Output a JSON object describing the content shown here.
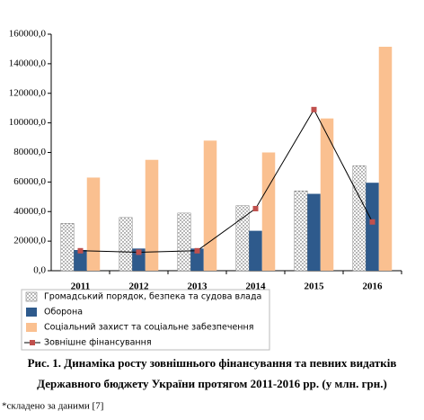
{
  "chart_data": {
    "type": "bar",
    "categories": [
      "2011",
      "2012",
      "2013",
      "2014",
      "2015",
      "2016"
    ],
    "series": [
      {
        "name": "Громадський порядок, безпека та судова влада",
        "color": "#ffffff",
        "pattern": "dots",
        "values": [
          32000,
          36000,
          39000,
          44000,
          54000,
          71000
        ]
      },
      {
        "name": "Оборона",
        "color": "#2e5a8c",
        "values": [
          14000,
          15000,
          15000,
          27000,
          52000,
          59500
        ]
      },
      {
        "name": "Соціальний захист та соціальне забезпечення",
        "color": "#fac090",
        "values": [
          63000,
          75000,
          88000,
          80000,
          103000,
          151500
        ]
      },
      {
        "name": "Зовнішне фінансування",
        "type": "line",
        "color": "#c0504d",
        "values": [
          13500,
          12500,
          13500,
          42000,
          109000,
          33000
        ]
      }
    ],
    "ylim": [
      0,
      160000
    ],
    "yticks": [
      {
        "value": 0,
        "label": "0,0"
      },
      {
        "value": 20000,
        "label": "20000,0"
      },
      {
        "value": 40000,
        "label": "40000,0"
      },
      {
        "value": 60000,
        "label": "60000,0"
      },
      {
        "value": 80000,
        "label": "80000,0"
      },
      {
        "value": 100000,
        "label": "100000,0"
      },
      {
        "value": 120000,
        "label": "120000,0"
      },
      {
        "value": 140000,
        "label": "140000,0"
      },
      {
        "value": 160000,
        "label": "160000,0"
      }
    ],
    "caption": [
      "Рис. 1. Динаміка росту зовнішнього фінансування та певних видатків",
      "Державного бюджету України протягом 2011-2016 рр. (у млн. грн.)"
    ],
    "note": "*складено за даними [7]"
  }
}
